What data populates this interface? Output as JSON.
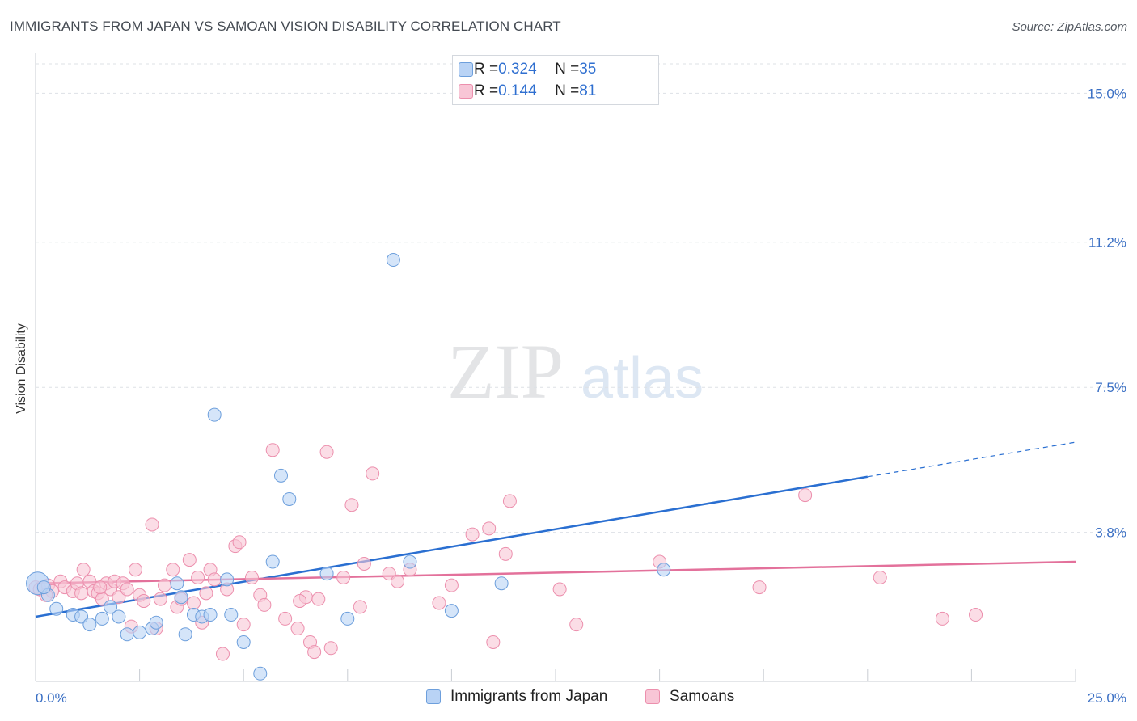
{
  "title": "IMMIGRANTS FROM JAPAN VS SAMOAN VISION DISABILITY CORRELATION CHART",
  "source": "Source: ZipAtlas.com",
  "watermark": {
    "zip": "ZIP",
    "atlas": "atlas"
  },
  "legend": {
    "rows": [
      {
        "r_label": "R = ",
        "r_value": "0.324",
        "n_label": "N = ",
        "n_value": "35"
      },
      {
        "r_label": "R = ",
        "r_value": "0.144",
        "n_label": "N = ",
        "n_value": "81"
      }
    ]
  },
  "colors": {
    "japan_fill": "#b9d3f5",
    "japan_stroke": "#6d9fdc",
    "japan_line": "#2a6fd1",
    "samoan_fill": "#f8c6d6",
    "samoan_stroke": "#ec8fad",
    "samoan_line": "#e3719b",
    "tick_text": "#3a6fc4",
    "grid": "#dde1e6"
  },
  "chart_data": {
    "type": "scatter",
    "title": "IMMIGRANTS FROM JAPAN VS SAMOAN VISION DISABILITY CORRELATION CHART",
    "xlabel": "",
    "ylabel": "Vision Disability",
    "xlim": [
      0,
      25
    ],
    "ylim": [
      0,
      15.75
    ],
    "x_tick_labels": [
      "0.0%",
      "25.0%"
    ],
    "y_ticks": [
      3.8,
      7.5,
      11.2,
      15.0
    ],
    "y_tick_labels": [
      "3.8%",
      "7.5%",
      "11.2%",
      "15.0%"
    ],
    "grid": true,
    "legend_position": "top-center",
    "series": [
      {
        "name": "Immigrants from Japan",
        "R": 0.324,
        "N": 35,
        "trend": {
          "x": [
            0,
            20
          ],
          "y": [
            1.65,
            5.22
          ],
          "dashed_extension_to_x": 25,
          "dashed_extension_y": 6.1
        },
        "points": [
          [
            0.05,
            2.5
          ],
          [
            0.3,
            2.2
          ],
          [
            0.5,
            1.85
          ],
          [
            0.9,
            1.7
          ],
          [
            1.1,
            1.65
          ],
          [
            1.3,
            1.45
          ],
          [
            1.6,
            1.6
          ],
          [
            1.8,
            1.9
          ],
          [
            2.0,
            1.65
          ],
          [
            2.2,
            1.2
          ],
          [
            2.5,
            1.25
          ],
          [
            2.8,
            1.35
          ],
          [
            2.9,
            1.5
          ],
          [
            3.4,
            2.5
          ],
          [
            3.5,
            2.15
          ],
          [
            3.6,
            1.2
          ],
          [
            3.8,
            1.7
          ],
          [
            4.0,
            1.65
          ],
          [
            4.2,
            1.7
          ],
          [
            4.3,
            6.8
          ],
          [
            4.6,
            2.6
          ],
          [
            4.7,
            1.7
          ],
          [
            5.0,
            1.0
          ],
          [
            5.4,
            0.2
          ],
          [
            5.7,
            3.05
          ],
          [
            5.9,
            5.25
          ],
          [
            6.1,
            4.65
          ],
          [
            7.0,
            2.75
          ],
          [
            7.5,
            1.6
          ],
          [
            8.6,
            10.75
          ],
          [
            9.0,
            3.05
          ],
          [
            10.0,
            1.8
          ],
          [
            11.2,
            2.5
          ],
          [
            15.1,
            2.85
          ],
          [
            0.2,
            2.4
          ]
        ]
      },
      {
        "name": "Samoans",
        "R": 0.144,
        "N": 81,
        "trend": {
          "x": [
            0,
            25
          ],
          "y": [
            2.5,
            3.05
          ]
        },
        "points": [
          [
            0.0,
            2.4
          ],
          [
            0.1,
            2.35
          ],
          [
            0.3,
            2.45
          ],
          [
            0.4,
            2.3
          ],
          [
            0.6,
            2.55
          ],
          [
            0.7,
            2.4
          ],
          [
            0.9,
            2.3
          ],
          [
            1.0,
            2.5
          ],
          [
            1.1,
            2.25
          ],
          [
            1.15,
            2.85
          ],
          [
            1.3,
            2.55
          ],
          [
            1.4,
            2.3
          ],
          [
            1.5,
            2.25
          ],
          [
            1.6,
            2.1
          ],
          [
            1.7,
            2.5
          ],
          [
            1.8,
            2.35
          ],
          [
            1.9,
            2.55
          ],
          [
            2.0,
            2.15
          ],
          [
            2.1,
            2.5
          ],
          [
            2.2,
            2.35
          ],
          [
            2.3,
            1.4
          ],
          [
            2.4,
            2.85
          ],
          [
            2.5,
            2.2
          ],
          [
            2.6,
            2.05
          ],
          [
            2.8,
            4.0
          ],
          [
            2.9,
            1.35
          ],
          [
            3.0,
            2.1
          ],
          [
            3.1,
            2.45
          ],
          [
            3.3,
            2.85
          ],
          [
            3.4,
            1.9
          ],
          [
            3.5,
            2.1
          ],
          [
            3.7,
            3.1
          ],
          [
            3.8,
            2.0
          ],
          [
            3.9,
            2.65
          ],
          [
            4.0,
            1.5
          ],
          [
            4.1,
            2.25
          ],
          [
            4.2,
            2.85
          ],
          [
            4.3,
            2.6
          ],
          [
            4.5,
            0.7
          ],
          [
            4.6,
            2.35
          ],
          [
            4.8,
            3.45
          ],
          [
            4.9,
            3.55
          ],
          [
            5.0,
            1.45
          ],
          [
            5.2,
            2.65
          ],
          [
            5.4,
            2.2
          ],
          [
            5.5,
            1.95
          ],
          [
            5.7,
            5.9
          ],
          [
            6.0,
            1.6
          ],
          [
            6.3,
            1.35
          ],
          [
            6.5,
            2.15
          ],
          [
            6.6,
            1.0
          ],
          [
            6.7,
            0.75
          ],
          [
            6.8,
            2.1
          ],
          [
            7.0,
            5.85
          ],
          [
            7.1,
            0.85
          ],
          [
            7.4,
            2.65
          ],
          [
            7.6,
            4.5
          ],
          [
            7.8,
            1.9
          ],
          [
            7.9,
            3.0
          ],
          [
            8.1,
            5.3
          ],
          [
            8.5,
            2.75
          ],
          [
            8.7,
            2.55
          ],
          [
            9.0,
            2.85
          ],
          [
            9.7,
            2.0
          ],
          [
            10.0,
            2.45
          ],
          [
            10.5,
            3.75
          ],
          [
            10.9,
            3.9
          ],
          [
            11.0,
            1.0
          ],
          [
            11.3,
            3.25
          ],
          [
            11.4,
            4.6
          ],
          [
            12.6,
            2.35
          ],
          [
            13.0,
            1.45
          ],
          [
            15.0,
            3.05
          ],
          [
            17.4,
            2.4
          ],
          [
            18.5,
            4.75
          ],
          [
            20.3,
            2.65
          ],
          [
            21.8,
            1.6
          ],
          [
            22.6,
            1.7
          ],
          [
            0.25,
            2.2
          ],
          [
            1.55,
            2.4
          ],
          [
            6.35,
            2.05
          ]
        ]
      }
    ]
  },
  "bottom_legend": [
    {
      "label": "Immigrants from Japan"
    },
    {
      "label": "Samoans"
    }
  ]
}
